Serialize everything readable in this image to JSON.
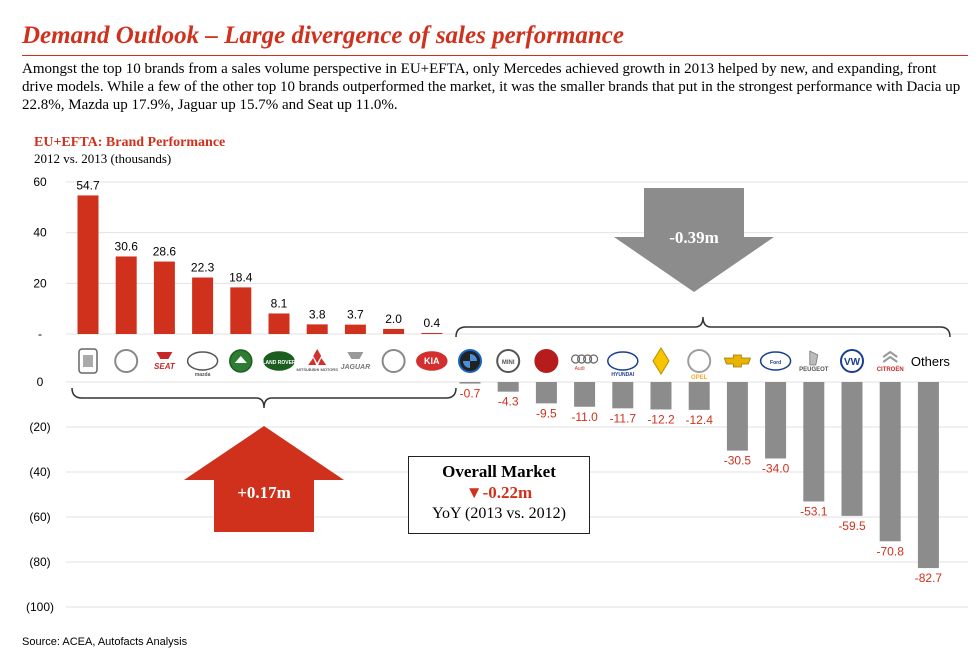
{
  "header": {
    "title": "Demand Outlook – Large divergence of sales performance",
    "intro": "Amongst the top 10 brands from a sales volume perspective in EU+EFTA, only Mercedes achieved growth in 2013 helped by new, and expanding, front drive models. While a few of the other top 10 brands outperformed the market, it was the smaller brands that put in the strongest performance with Dacia up 22.8%, Mazda up 17.9%, Jaguar up 15.7% and Seat up 11.0%."
  },
  "chart_data": {
    "type": "bar",
    "title": "EU+EFTA: Brand Performance",
    "subtitle": "2012 vs. 2013 (thousands)",
    "upper_panel": {
      "categories": [
        "Dacia",
        "Mercedes",
        "Seat",
        "Mazda",
        "Skoda",
        "Land Rover",
        "Mitsubishi",
        "Jaguar",
        "Toyota",
        "Kia"
      ],
      "values": [
        54.7,
        30.6,
        28.6,
        22.3,
        18.4,
        8.1,
        3.8,
        3.7,
        2.0,
        0.4
      ],
      "value_labels": [
        "54.7",
        "30.6",
        "28.6",
        "22.3",
        "18.4",
        "8.1",
        "3.8",
        "3.7",
        "2.0",
        "0.4"
      ],
      "ylim": [
        0,
        60
      ],
      "ticks": [
        "60",
        "40",
        "20",
        "-"
      ],
      "tick_values": [
        60,
        40,
        20,
        0
      ],
      "color": "#d0311c"
    },
    "lower_panel": {
      "categories": [
        "BMW",
        "Mini",
        "Fiat",
        "Audi",
        "Hyundai",
        "Renault",
        "Opel",
        "Chevrolet",
        "Ford",
        "Peugeot",
        "Volkswagen",
        "Citroen",
        "Others"
      ],
      "values": [
        -0.7,
        -4.3,
        -9.5,
        -11.0,
        -11.7,
        -12.2,
        -12.4,
        -30.5,
        -34.0,
        -53.1,
        -59.5,
        -70.8,
        -82.7
      ],
      "value_labels": [
        "-0.7",
        "-4.3",
        "-9.5",
        "-11.0",
        "-11.7",
        "-12.2",
        "-12.4",
        "-30.5",
        "-34.0",
        "-53.1",
        "-59.5",
        "-70.8",
        "-82.7"
      ],
      "ylim": [
        -100,
        0
      ],
      "ticks": [
        "0",
        "(20)",
        "(40)",
        "(60)",
        "(80)",
        "(100)"
      ],
      "tick_values": [
        0,
        -20,
        -40,
        -60,
        -80,
        -100
      ],
      "color": "#8c8c8c",
      "label_color": "#d0311c"
    },
    "logo_texts": {
      "Seat": "SEAT",
      "Mazda": "mazda",
      "Land Rover": "LAND ROVER",
      "Mitsubishi": "MITSUBISHI MOTORS",
      "Jaguar": "JAGUAR",
      "Kia": "KIA",
      "Mini": "MINI",
      "Audi": "Audi",
      "Hyundai": "HYUNDAI",
      "Opel": "OPEL",
      "Ford": "Ford",
      "Peugeot": "PEUGEOT",
      "Volkswagen": "VW",
      "Citroen": "CITROËN",
      "Others": "Others"
    },
    "annotations": {
      "growth": "+0.17m",
      "decline": "-0.39m"
    }
  },
  "market": {
    "title": "Overall Market",
    "value": "▼-0.22m",
    "period": "YoY (2013 vs. 2012)"
  },
  "source": "Source: ACEA, Autofacts Analysis",
  "colors": {
    "accent": "#d0311c",
    "grey": "#8c8c8c",
    "grid": "#e2e2e2"
  }
}
